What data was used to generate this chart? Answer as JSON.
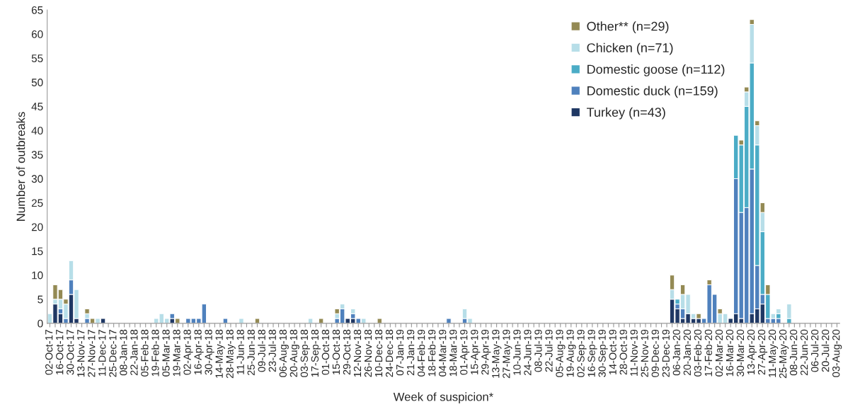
{
  "chart_data": {
    "type": "bar",
    "stacked": true,
    "xlabel": "Week of suspicion*",
    "ylabel": "Number of outbreaks",
    "categories": [
      "02-Oct-17",
      null,
      "16-Oct-17",
      null,
      "30-Oct-17",
      null,
      "13-Nov-17",
      null,
      "27-Nov-17",
      null,
      "11-Dec-17",
      null,
      "25-Dec-17",
      null,
      "08-Jan-18",
      null,
      "22-Jan-18",
      null,
      "05-Feb-18",
      null,
      "19-Feb-18",
      null,
      "05-Mar-18",
      null,
      "19-Mar-18",
      null,
      "02-Apr-18",
      null,
      "16-Apr-18",
      null,
      "30-Apr-18",
      null,
      "14-May-18",
      null,
      "28-May-18",
      null,
      "11-Jun-18",
      null,
      "25-Jun-18",
      null,
      "09-Jul-18",
      null,
      "23-Jul-18",
      null,
      "06-Aug-18",
      null,
      "20-Aug-18",
      null,
      "03-Sep-18",
      null,
      "17-Sep-18",
      null,
      "01-Oct-18",
      null,
      "15-Oct-18",
      null,
      "29-Oct-18",
      null,
      "12-Nov-18",
      null,
      "26-Nov-18",
      null,
      "10-Dec-18",
      null,
      "24-Dec-18",
      null,
      "07-Jan-19",
      null,
      "21-Jan-19",
      null,
      "04-Feb-19",
      null,
      "18-Feb-19",
      null,
      "04-Mar-19",
      null,
      "18-Mar-19",
      null,
      "01-Apr-19",
      null,
      "15-Apr-19",
      null,
      "29-Apr-19",
      null,
      "13-May-19",
      null,
      "27-May-19",
      null,
      "10-Jun-19",
      null,
      "24-Jun-19",
      null,
      "08-Jul-19",
      null,
      "22-Jul-19",
      null,
      "05-Aug-19",
      null,
      "19-Aug-19",
      null,
      "02-Sep-19",
      null,
      "16-Sep-19",
      null,
      "30-Sep-19",
      null,
      "14-Oct-19",
      null,
      "28-Oct-19",
      null,
      "11-Nov-19",
      null,
      "25-Nov-19",
      null,
      "09-Dec-19",
      null,
      "23-Dec-19",
      null,
      "06-Jan-20",
      null,
      "20-Jan-20",
      null,
      "03-Feb-20",
      null,
      "17-Feb-20",
      null,
      "02-Mar-20",
      null,
      "16-Mar-20",
      null,
      "30-Mar-20",
      null,
      "13-Apr-20",
      null,
      "27-Apr-20",
      null,
      "11-May-20",
      null,
      "25-May-20",
      null,
      "08-Jun-20",
      null,
      "22-Jun-20",
      null,
      "06-Jul-20",
      null,
      "20-Jul-20",
      null,
      "03-Aug-20"
    ],
    "series": [
      {
        "name": "Turkey (n=43)",
        "color": "#1f3864",
        "values": [
          0,
          4,
          2,
          0,
          6,
          1,
          0,
          0,
          0,
          0,
          1,
          0,
          0,
          0,
          0,
          0,
          0,
          0,
          0,
          0,
          0,
          0,
          0,
          1,
          0,
          0,
          0,
          0,
          0,
          0,
          0,
          0,
          0,
          0,
          0,
          0,
          0,
          0,
          0,
          0,
          0,
          0,
          0,
          0,
          0,
          0,
          0,
          0,
          0,
          0,
          0,
          0,
          0,
          0,
          0,
          0,
          1,
          1,
          0,
          0,
          0,
          0,
          0,
          0,
          0,
          0,
          0,
          0,
          0,
          0,
          0,
          0,
          0,
          0,
          0,
          0,
          0,
          0,
          0,
          0,
          0,
          0,
          0,
          0,
          0,
          0,
          0,
          0,
          0,
          0,
          0,
          0,
          0,
          0,
          0,
          0,
          0,
          0,
          0,
          0,
          0,
          0,
          0,
          0,
          0,
          0,
          0,
          0,
          0,
          0,
          0,
          0,
          0,
          0,
          0,
          0,
          0,
          5,
          3,
          1,
          2,
          1,
          1,
          0,
          0,
          0,
          0,
          0,
          1,
          2,
          1,
          0,
          2,
          3,
          4,
          0,
          0,
          0,
          0,
          0,
          0,
          0,
          0,
          0,
          0,
          0,
          0,
          0,
          0
        ]
      },
      {
        "name": "Domestic duck (n=159)",
        "color": "#4f81bd",
        "values": [
          0,
          0,
          1,
          1,
          3,
          0,
          0,
          1,
          0,
          0,
          0,
          0,
          0,
          0,
          0,
          0,
          0,
          0,
          0,
          0,
          0,
          0,
          0,
          1,
          0,
          0,
          1,
          1,
          1,
          4,
          0,
          0,
          0,
          1,
          0,
          0,
          0,
          0,
          0,
          0,
          0,
          0,
          0,
          0,
          0,
          0,
          0,
          0,
          0,
          0,
          0,
          0,
          0,
          0,
          1,
          3,
          0,
          1,
          1,
          0,
          0,
          0,
          0,
          0,
          0,
          0,
          0,
          0,
          0,
          0,
          0,
          0,
          0,
          0,
          0,
          1,
          0,
          0,
          1,
          0,
          0,
          0,
          0,
          0,
          0,
          0,
          0,
          0,
          0,
          0,
          0,
          0,
          0,
          0,
          0,
          0,
          0,
          0,
          0,
          0,
          0,
          0,
          0,
          0,
          0,
          0,
          0,
          0,
          0,
          0,
          0,
          0,
          0,
          0,
          0,
          0,
          0,
          0,
          1,
          2,
          0,
          0,
          0,
          1,
          8,
          6,
          0,
          0,
          0,
          28,
          22,
          24,
          30,
          9,
          2,
          1,
          1,
          1,
          0,
          0,
          0,
          0,
          0,
          0,
          0,
          0,
          0,
          0,
          0
        ]
      },
      {
        "name": "Domestic goose (n=112)",
        "color": "#4bacc6",
        "values": [
          0,
          0,
          0,
          0,
          0,
          0,
          0,
          0,
          0,
          0,
          0,
          0,
          0,
          0,
          0,
          0,
          0,
          0,
          0,
          0,
          0,
          0,
          0,
          0,
          0,
          0,
          0,
          0,
          0,
          0,
          0,
          0,
          0,
          0,
          0,
          0,
          0,
          0,
          0,
          0,
          0,
          0,
          0,
          0,
          0,
          0,
          0,
          0,
          0,
          0,
          0,
          0,
          0,
          0,
          0,
          0,
          0,
          0,
          0,
          0,
          0,
          0,
          0,
          0,
          0,
          0,
          0,
          0,
          0,
          0,
          0,
          0,
          0,
          0,
          0,
          0,
          0,
          0,
          0,
          0,
          0,
          0,
          0,
          0,
          0,
          0,
          0,
          0,
          0,
          0,
          0,
          0,
          0,
          0,
          0,
          0,
          0,
          0,
          0,
          0,
          0,
          0,
          0,
          0,
          0,
          0,
          0,
          0,
          0,
          0,
          0,
          0,
          0,
          0,
          0,
          0,
          0,
          0,
          1,
          0,
          0,
          0,
          0,
          0,
          0,
          0,
          0,
          0,
          0,
          9,
          14,
          21,
          22,
          25,
          13,
          5,
          0,
          1,
          0,
          1,
          0,
          0,
          0,
          0,
          0,
          0,
          0,
          0,
          0
        ]
      },
      {
        "name": "Chicken (n=71)",
        "color": "#b7dee8",
        "values": [
          2,
          1,
          2,
          3,
          4,
          6,
          0,
          1,
          0,
          1,
          0,
          0,
          0,
          0,
          0,
          0,
          0,
          0,
          0,
          0,
          1,
          2,
          1,
          0,
          0,
          0,
          0,
          0,
          0,
          0,
          0,
          0,
          0,
          0,
          0,
          0,
          1,
          0,
          0,
          0,
          0,
          0,
          0,
          0,
          0,
          0,
          0,
          0,
          0,
          1,
          0,
          0,
          0,
          0,
          1,
          1,
          0,
          1,
          0,
          1,
          0,
          0,
          0,
          0,
          0,
          0,
          0,
          0,
          0,
          0,
          0,
          0,
          0,
          0,
          0,
          0,
          0,
          0,
          2,
          1,
          0,
          0,
          0,
          0,
          0,
          0,
          0,
          0,
          0,
          0,
          0,
          0,
          0,
          0,
          0,
          0,
          0,
          0,
          0,
          0,
          0,
          0,
          0,
          0,
          0,
          0,
          0,
          0,
          0,
          0,
          0,
          0,
          0,
          0,
          0,
          0,
          0,
          2,
          0,
          3,
          4,
          1,
          0,
          0,
          0,
          0,
          2,
          2,
          0,
          0,
          0,
          3,
          8,
          4,
          4,
          0,
          1,
          1,
          0,
          3,
          0,
          0,
          0,
          0,
          0,
          0,
          0,
          0,
          0
        ]
      },
      {
        "name": "Other** (n=29)",
        "color": "#948a54",
        "values": [
          0,
          3,
          2,
          1,
          0,
          0,
          0,
          1,
          1,
          0,
          0,
          0,
          0,
          0,
          0,
          0,
          0,
          0,
          0,
          0,
          0,
          0,
          0,
          0,
          1,
          0,
          0,
          0,
          0,
          0,
          0,
          0,
          0,
          0,
          0,
          0,
          0,
          0,
          0,
          1,
          0,
          0,
          0,
          0,
          0,
          0,
          0,
          0,
          0,
          0,
          0,
          1,
          0,
          0,
          1,
          0,
          0,
          0,
          0,
          0,
          0,
          0,
          1,
          0,
          0,
          0,
          0,
          0,
          0,
          0,
          0,
          0,
          0,
          0,
          0,
          0,
          0,
          0,
          0,
          0,
          0,
          0,
          0,
          0,
          0,
          0,
          0,
          0,
          0,
          0,
          0,
          0,
          0,
          0,
          0,
          0,
          0,
          0,
          0,
          0,
          0,
          0,
          0,
          0,
          0,
          0,
          0,
          0,
          0,
          0,
          0,
          0,
          0,
          0,
          0,
          0,
          0,
          3,
          0,
          2,
          0,
          0,
          1,
          0,
          1,
          0,
          1,
          0,
          0,
          0,
          1,
          1,
          1,
          1,
          2,
          2,
          0,
          0,
          0,
          0,
          0,
          0,
          0,
          0,
          0,
          0,
          0,
          0,
          0
        ]
      }
    ],
    "ylim": [
      0,
      65
    ],
    "yticks": [
      0,
      5,
      10,
      15,
      20,
      25,
      30,
      35,
      40,
      45,
      50,
      55,
      60,
      65
    ],
    "grid": false,
    "legend": "top right"
  }
}
